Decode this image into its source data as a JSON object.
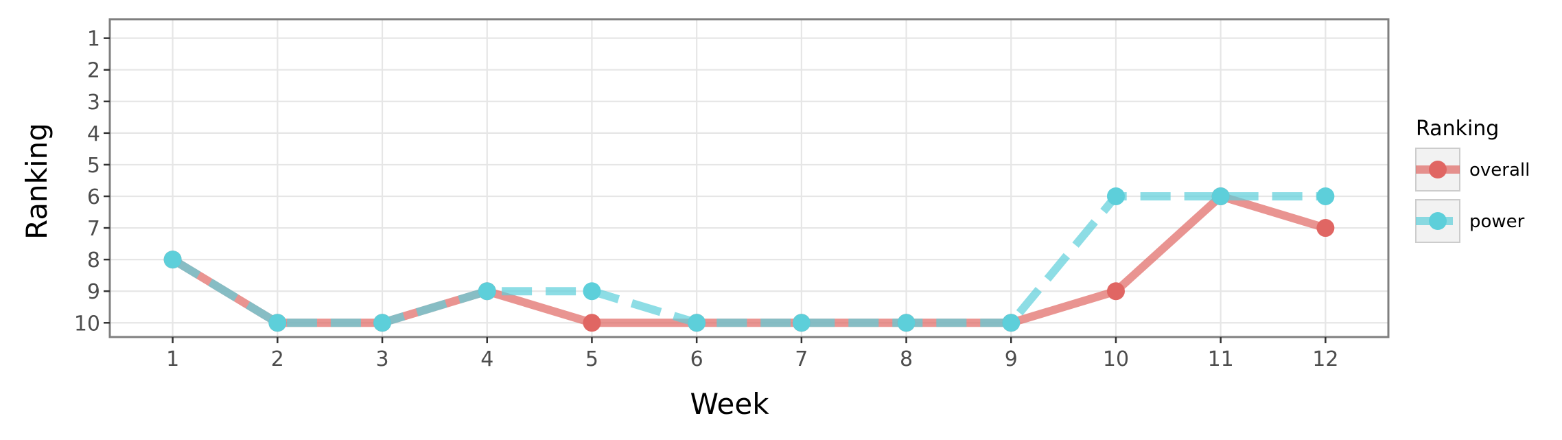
{
  "chart_data": {
    "type": "line",
    "title": "",
    "xlabel": "Week",
    "ylabel": "Ranking",
    "x": [
      1,
      2,
      3,
      4,
      5,
      6,
      7,
      8,
      9,
      10,
      11,
      12
    ],
    "xticks": [
      "1",
      "2",
      "3",
      "4",
      "5",
      "6",
      "7",
      "8",
      "9",
      "10",
      "11",
      "12"
    ],
    "yticks": [
      "1",
      "2",
      "3",
      "4",
      "5",
      "6",
      "7",
      "8",
      "9",
      "10"
    ],
    "ylim": [
      1,
      10
    ],
    "y_reversed": true,
    "grid": true,
    "legend": {
      "title": "Ranking",
      "position": "right"
    },
    "series": [
      {
        "name": "overall",
        "values": [
          8,
          10,
          10,
          9,
          10,
          10,
          10,
          10,
          10,
          9,
          6,
          7
        ],
        "color": "#e06663",
        "line_style": "solid"
      },
      {
        "name": "power",
        "values": [
          8,
          10,
          10,
          9,
          9,
          10,
          10,
          10,
          10,
          6,
          6,
          6
        ],
        "color": "#5dcfda",
        "line_style": "dashed"
      }
    ]
  }
}
